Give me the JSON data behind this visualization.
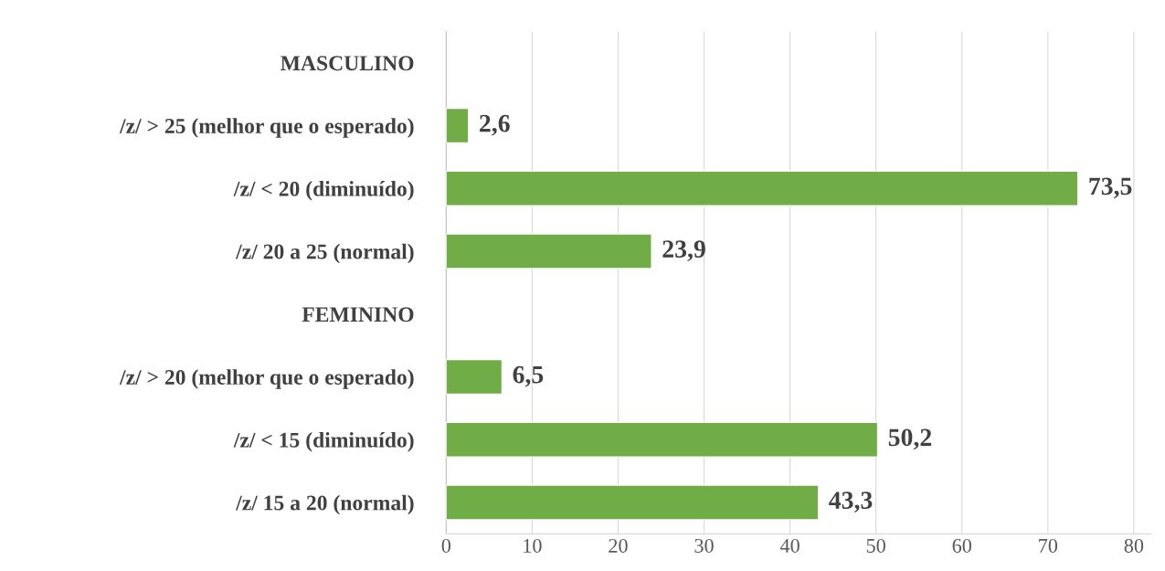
{
  "chart_data": {
    "type": "bar",
    "orientation": "horizontal",
    "categories": [
      "MASCULINO",
      "/z/ > 25 (melhor que o esperado)",
      "/z/ < 20 (diminuído)",
      "/z/ 20 a 25 (normal)",
      "FEMININO",
      "/z/ > 20 (melhor que o esperado)",
      "/z/ < 15 (diminuído)",
      "/z/ 15 a 20 (normal)"
    ],
    "values": [
      null,
      2.6,
      73.5,
      23.9,
      null,
      6.5,
      50.2,
      43.3
    ],
    "value_labels": [
      null,
      "2,6",
      "73,5",
      "23,9",
      null,
      "6,5",
      "50,2",
      "43,3"
    ],
    "color": "#70ad47",
    "xlim": [
      0,
      82
    ],
    "xticks": [
      0,
      10,
      20,
      30,
      40,
      50,
      60,
      70,
      80
    ],
    "grid": "x",
    "legend": false
  }
}
